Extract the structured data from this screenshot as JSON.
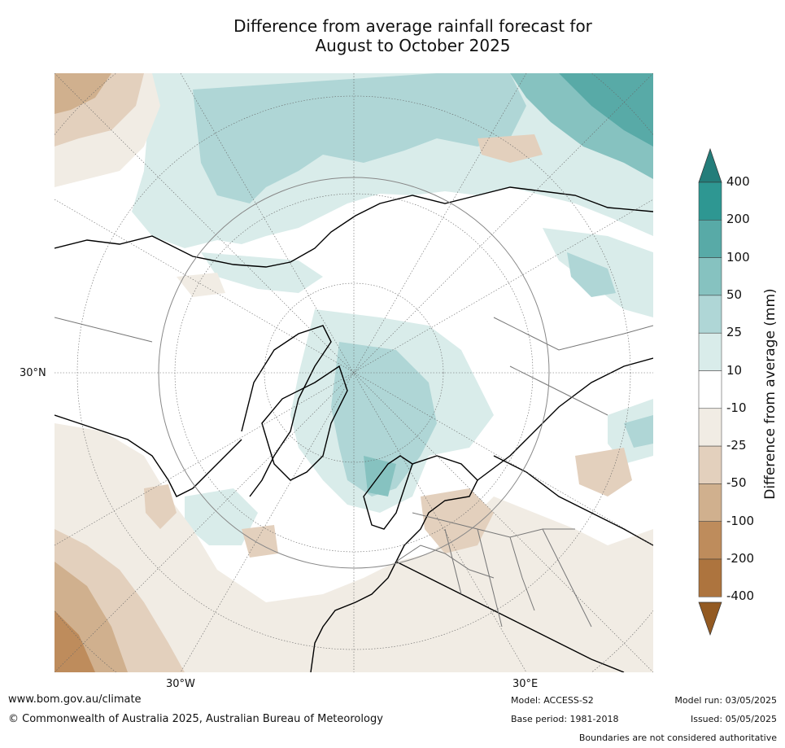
{
  "title": {
    "line1": "Difference from average rainfall forecast for",
    "line2": "August to October 2025"
  },
  "map": {
    "projection": "north polar stereographic",
    "graticule_labels": {
      "lat": "30°N",
      "lon_west": "30°W",
      "lon_east": "30°E"
    }
  },
  "legend": {
    "title": "Difference from average (mm)",
    "ticks": [
      "400",
      "200",
      "100",
      "50",
      "25",
      "10",
      "-10",
      "-25",
      "-50",
      "-100",
      "-200",
      "-400"
    ],
    "colors": [
      "#247d7a",
      "#2e9792",
      "#58aaa7",
      "#86c2c0",
      "#afd6d6",
      "#d9ecea",
      "#ffffff",
      "#f1ece4",
      "#e3d0bd",
      "#d0b08e",
      "#be8c5c",
      "#ad743e",
      "#935a22"
    ]
  },
  "footer": {
    "website": "www.bom.gov.au/climate",
    "copyright": "© Commonwealth of Australia 2025, Australian Bureau of Meteorology",
    "model": "Model: ACCESS-S2",
    "base_period": "Base period: 1981-2018",
    "model_run": "Model run: 03/05/2025",
    "issued": "Issued: 05/05/2025",
    "disclaimer": "Boundaries are not considered authoritative"
  }
}
